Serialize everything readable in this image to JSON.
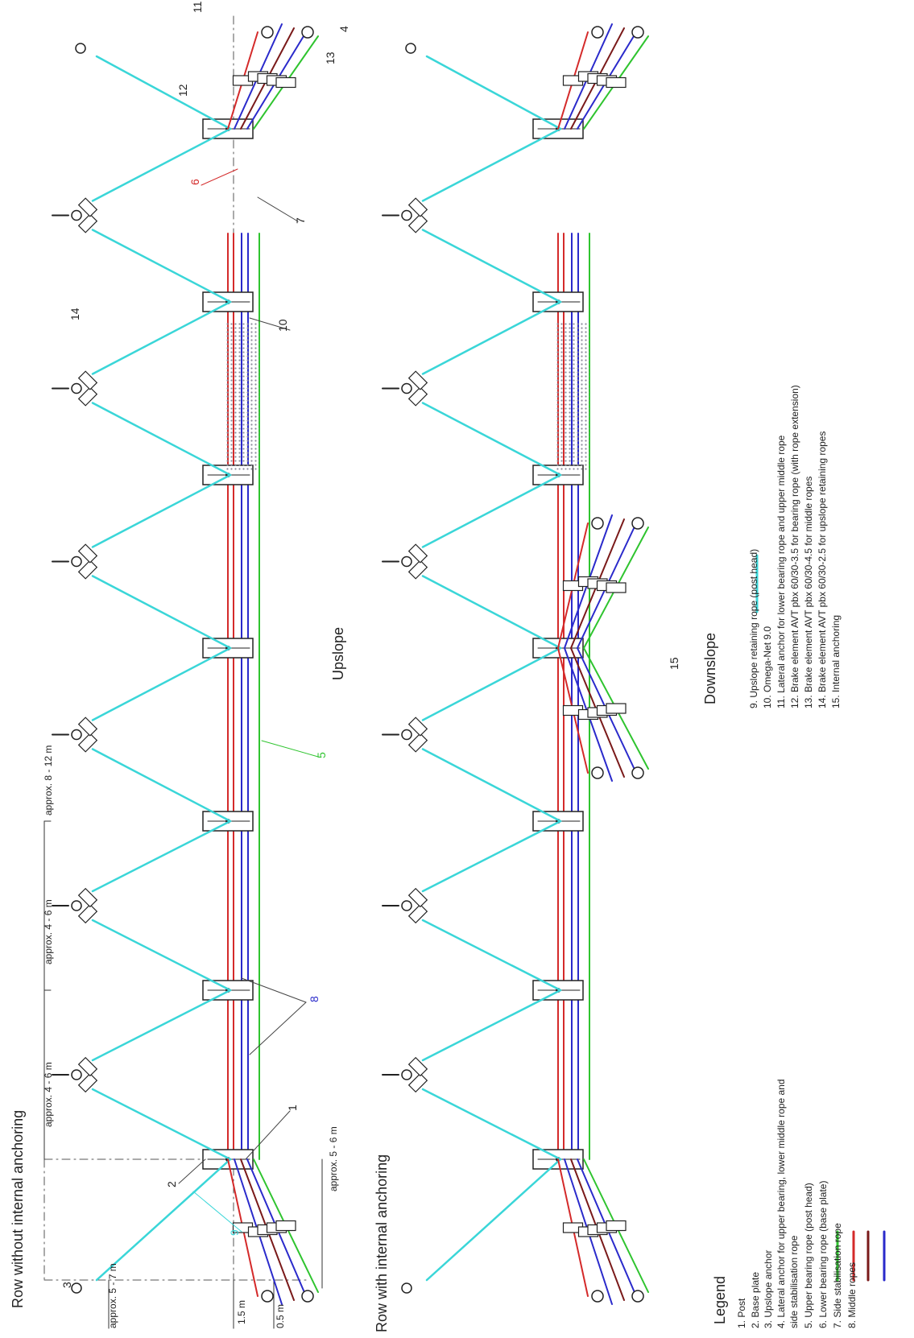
{
  "headings": {
    "top_row": "Row without internal anchoring",
    "bottom_row": "Row with internal anchoring",
    "upslope": "Upslope",
    "downslope": "Downslope",
    "legend": "Legend"
  },
  "dimensions": {
    "d_post_spacing_a": "approx. 4 - 6 m",
    "d_post_spacing_b": "approx. 4 - 6 m",
    "d_upslope_spacing": "approx. 8 - 12 m",
    "d_lateral": "approx. 5 - 6 m",
    "d_height": "approx. 5 - 7 m",
    "d_1_5": "1.5 m",
    "d_0_5": "0.5 m"
  },
  "callouts": [
    "1",
    "2",
    "3",
    "4",
    "5",
    "6",
    "7",
    "8",
    "9",
    "10",
    "11",
    "12",
    "13",
    "14",
    "15"
  ],
  "legend": {
    "items": [
      "1.  Post",
      "2.  Base plate",
      "3.  Upslope anchor",
      "4.  Lateral anchor for upper bearing, lower middle rope and",
      "     side stabilisation rope",
      "5.  Upper bearing rope (post head)",
      "6.  Lower bearing rope (base plate)",
      "7.  Side stabilisation rope",
      "8.  Middle ropes",
      "9.  Upslope retaining rope (post head)",
      "10. Omega-Net 9.0",
      "11.  Lateral anchor for lower bearing rope and upper middle rope",
      "12. Brake element AVT pbx 60/30-3.5 for bearing rope (with rope extension)",
      "13. Brake element AVT pbx 60/30-4.5 for middle ropes",
      "14. Brake element AVT pbx 60/30-2.5 for upslope retaining ropes",
      "15. Internal anchoring"
    ]
  },
  "colors": {
    "cyan": "#3ad6d8",
    "green": "#2fc42f",
    "red": "#d42a2a",
    "darkred": "#7a1a1a",
    "blue": "#2a2acb",
    "ink": "#222222",
    "net": "#9a9aa8"
  }
}
